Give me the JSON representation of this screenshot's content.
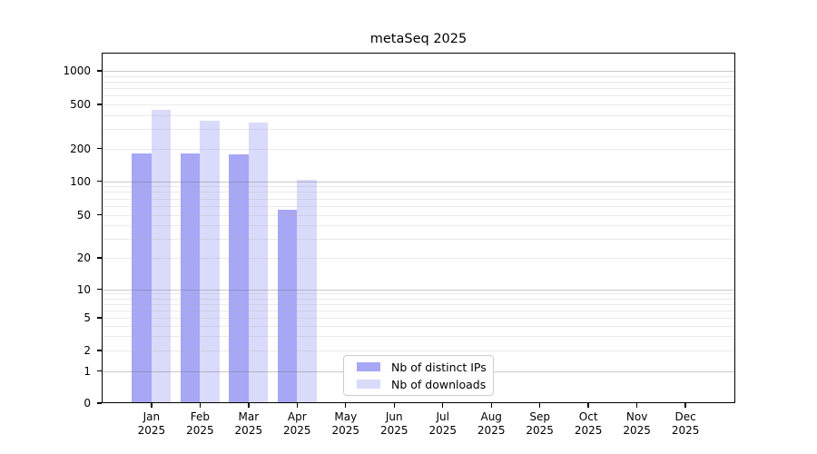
{
  "chart_data": {
    "type": "bar",
    "title": "metaSeq 2025",
    "xlabel": "",
    "ylabel": "",
    "categories": [
      "Jan",
      "Feb",
      "Mar",
      "Apr",
      "May",
      "Jun",
      "Jul",
      "Aug",
      "Sep",
      "Oct",
      "Nov",
      "Dec"
    ],
    "year_label": "2025",
    "series": [
      {
        "name": "Nb of distinct IPs",
        "color": "#a7a7f6",
        "values": [
          181,
          181,
          176,
          55,
          0,
          0,
          0,
          0,
          0,
          0,
          0,
          0
        ]
      },
      {
        "name": "Nb of downloads",
        "color": "#dadafb",
        "values": [
          450,
          355,
          345,
          102,
          0,
          0,
          0,
          0,
          0,
          0,
          0,
          0
        ]
      }
    ],
    "yticks": [
      0,
      1,
      2,
      5,
      10,
      20,
      50,
      100,
      200,
      500,
      1000
    ],
    "ylim": [
      0,
      1400
    ],
    "yscale": "symlog",
    "grid": "horizontal-major-and-minor",
    "legend_position": "bottom-center-inside"
  },
  "legend": {
    "items": [
      {
        "label": "Nb of distinct IPs",
        "color": "#a7a7f6"
      },
      {
        "label": "Nb of downloads",
        "color": "#dadafb"
      }
    ]
  },
  "colors": {
    "axis": "#000000",
    "grid_major": "rgba(110,110,110,0.38)",
    "grid_minor": "rgba(170,170,170,0.25)",
    "background": "#ffffff"
  }
}
